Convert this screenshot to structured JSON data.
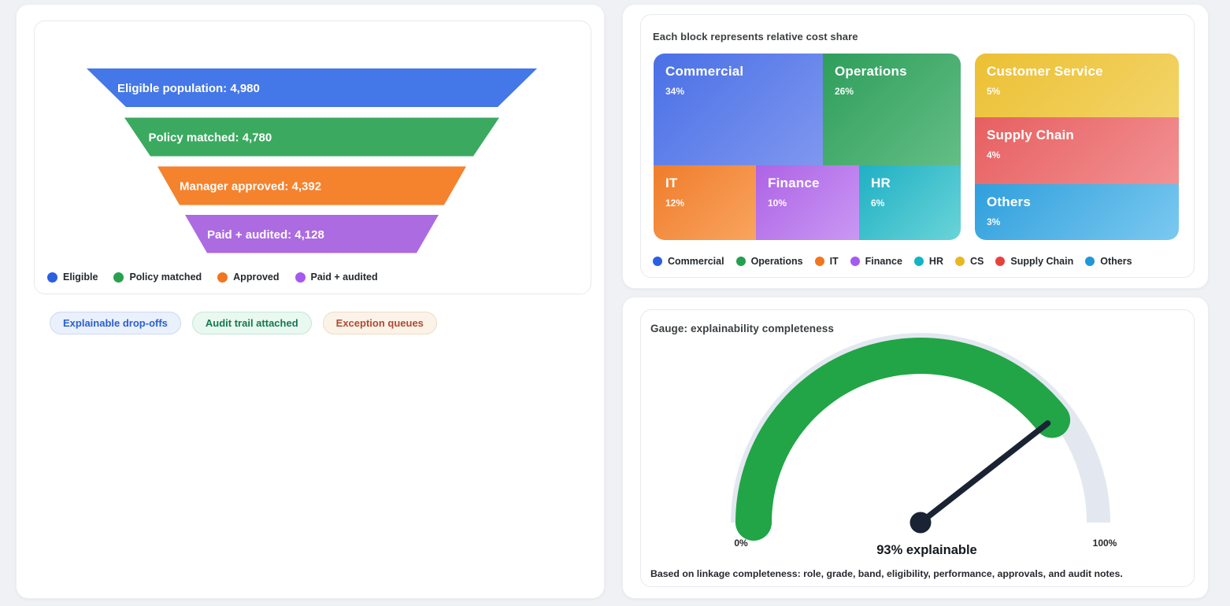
{
  "funnel_panel": {
    "stages": [
      {
        "label": "Eligible population: 4,980",
        "value": 4980,
        "color": "#4477E7"
      },
      {
        "label": "Policy matched: 4,780",
        "value": 4780,
        "color": "#3BAA60"
      },
      {
        "label": "Manager approved: 4,392",
        "value": 4392,
        "color": "#F5822D"
      },
      {
        "label": "Paid + audited: 4,128",
        "value": 4128,
        "color": "#AC6BE0"
      }
    ],
    "legend": [
      {
        "label": "Eligible",
        "color": "#2B5EE0"
      },
      {
        "label": "Policy matched",
        "color": "#27A14F"
      },
      {
        "label": "Approved",
        "color": "#F0771F"
      },
      {
        "label": "Paid + audited",
        "color": "#A658EF"
      }
    ]
  },
  "badges": [
    {
      "label": "Explainable drop-offs",
      "text_color": "#2A5FD0",
      "bg": "#EAF0FC",
      "border": "#CDD9F3"
    },
    {
      "label": "Audit trail attached",
      "text_color": "#137A4E",
      "bg": "#E9F8F0",
      "border": "#C4E8D4"
    },
    {
      "label": "Exception queues",
      "text_color": "#B14A2F",
      "bg": "#FCF3E8",
      "border": "#EEDCC3"
    }
  ],
  "treemap_panel": {
    "title": "Each block represents relative cost share",
    "blocks": [
      {
        "id": "commercial",
        "name": "Commercial",
        "pct": "34%",
        "g1": "#4A70E6",
        "g2": "#7F97EF"
      },
      {
        "id": "operations",
        "name": "Operations",
        "pct": "26%",
        "g1": "#2E9E5B",
        "g2": "#63BE85"
      },
      {
        "id": "it",
        "name": "IT",
        "pct": "12%",
        "g1": "#EF7D2C",
        "g2": "#F9A45E"
      },
      {
        "id": "finance",
        "name": "Finance",
        "pct": "10%",
        "g1": "#AE63E6",
        "g2": "#C998F3"
      },
      {
        "id": "hr",
        "name": "HR",
        "pct": "6%",
        "g1": "#1FB0C4",
        "g2": "#6AD4D8"
      },
      {
        "id": "cs",
        "name": "Customer Service",
        "pct": "5%",
        "g1": "#ECC034",
        "g2": "#F2D468"
      },
      {
        "id": "supply",
        "name": "Supply Chain",
        "pct": "4%",
        "g1": "#E75F60",
        "g2": "#F29193"
      },
      {
        "id": "others",
        "name": "Others",
        "pct": "3%",
        "g1": "#2F9FDD",
        "g2": "#7BC9EF"
      }
    ],
    "legend": [
      {
        "label": "Commercial",
        "color": "#2B5FE3"
      },
      {
        "label": "Operations",
        "color": "#22A050"
      },
      {
        "label": "IT",
        "color": "#F0761F"
      },
      {
        "label": "Finance",
        "color": "#A559F0"
      },
      {
        "label": "HR",
        "color": "#12B5C2"
      },
      {
        "label": "CS",
        "color": "#E8B821"
      },
      {
        "label": "Supply Chain",
        "color": "#E8413C"
      },
      {
        "label": "Others",
        "color": "#2196D9"
      }
    ]
  },
  "gauge_panel": {
    "title": "Gauge: explainability completeness",
    "value_pct": 93,
    "value_label": "93% explainable",
    "min_label": "0%",
    "max_label": "100%",
    "caption": "Based on linkage completeness: role, grade, band, eligibility, performance, approvals, and audit notes.",
    "arc_color": "#21A546",
    "track_color": "#E3E8F0",
    "needle_color": "#1A2333"
  },
  "chart_data": [
    {
      "type": "funnel",
      "title": "",
      "stages": [
        {
          "label": "Eligible population",
          "value": 4980
        },
        {
          "label": "Policy matched",
          "value": 4780
        },
        {
          "label": "Manager approved",
          "value": 4392
        },
        {
          "label": "Paid + audited",
          "value": 4128
        }
      ],
      "legend": [
        "Eligible",
        "Policy matched",
        "Approved",
        "Paid + audited"
      ],
      "annotations": [
        "Explainable drop-offs",
        "Audit trail attached",
        "Exception queues"
      ]
    },
    {
      "type": "heatmap",
      "subtype": "treemap",
      "title": "Each block represents relative cost share",
      "categories": [
        "Commercial",
        "Operations",
        "IT",
        "Finance",
        "HR",
        "Customer Service",
        "Supply Chain",
        "Others"
      ],
      "values": [
        34,
        26,
        12,
        10,
        6,
        5,
        4,
        3
      ],
      "unit": "%",
      "legend_position": "bottom"
    },
    {
      "type": "gauge",
      "title": "Gauge: explainability completeness",
      "value": 93,
      "min": 0,
      "max": 100,
      "unit": "%",
      "label": "93% explainable",
      "caption": "Based on linkage completeness: role, grade, band, eligibility, performance, approvals, and audit notes."
    }
  ]
}
